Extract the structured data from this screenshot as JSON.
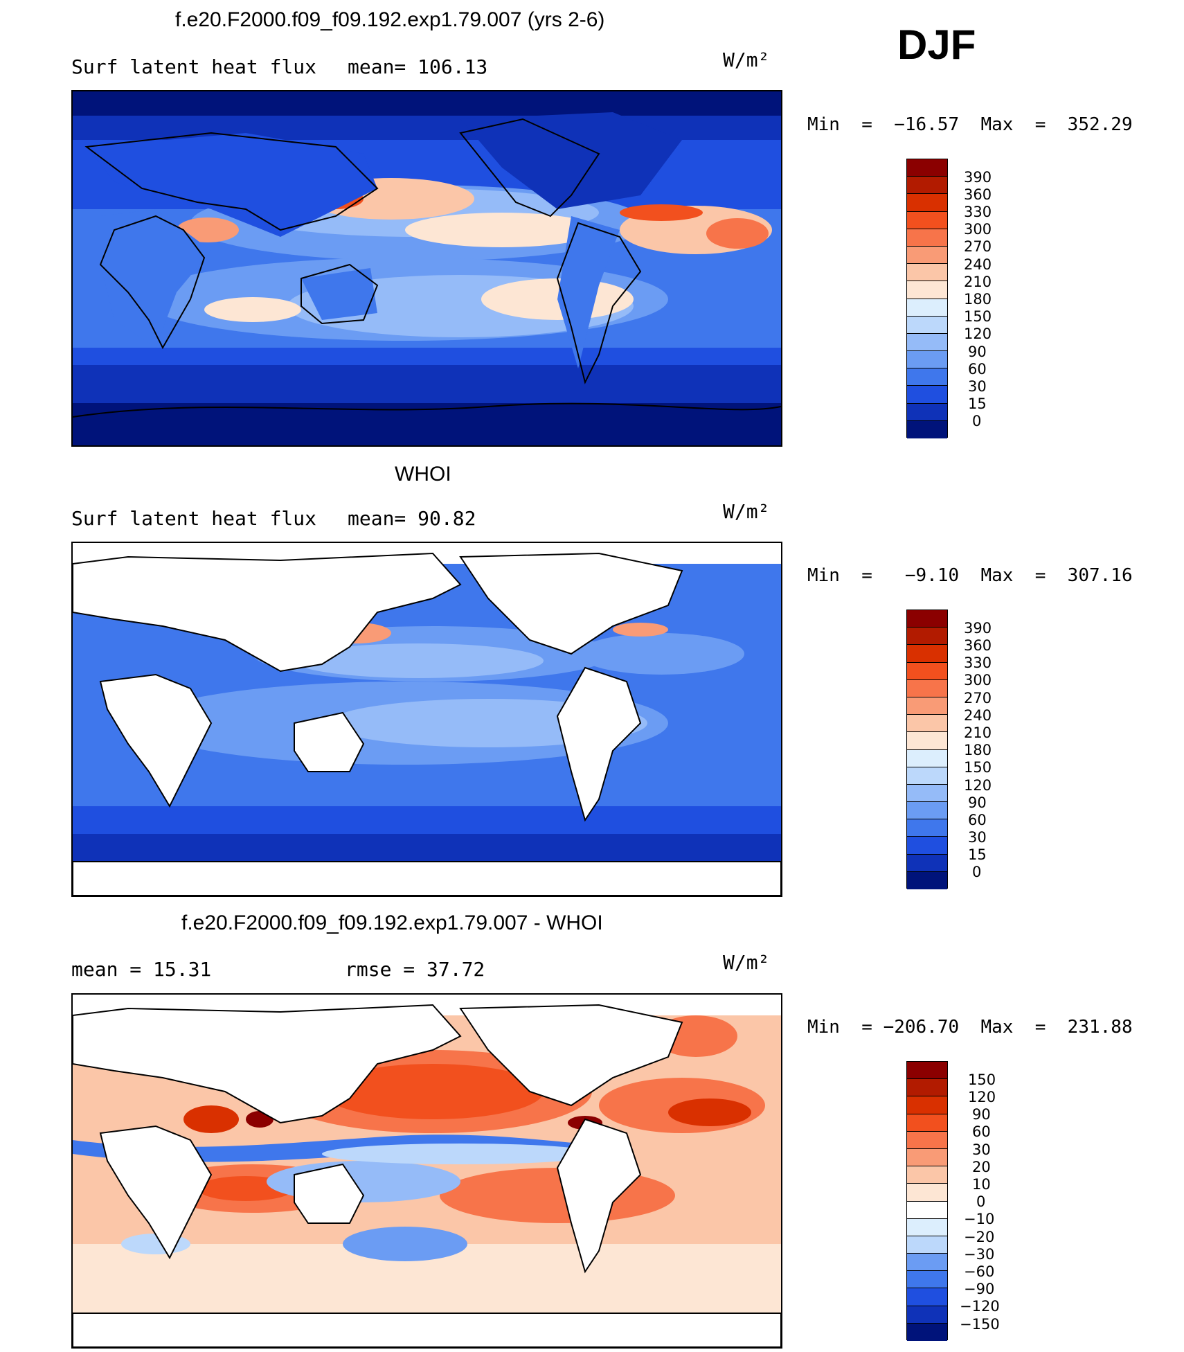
{
  "season": "DJF",
  "units": "W/m²",
  "panels": [
    {
      "title": "f.e20.F2000.f09_f09.192.exp1.79.007 (yrs 2-6)",
      "left_label": "Surf latent heat flux",
      "mid_label": "mean=  106.13",
      "minmax": "Min  =  −16.57  Max  =  352.29",
      "colorbar": {
        "labels": [
          "390",
          "360",
          "330",
          "300",
          "270",
          "240",
          "210",
          "180",
          "150",
          "120",
          "90",
          "60",
          "30",
          "15",
          "0"
        ],
        "colors": [
          "#8b0000",
          "#b21b00",
          "#d93000",
          "#f2501e",
          "#f7744a",
          "#f99b76",
          "#fbc6a8",
          "#fde6d4",
          "#dceefd",
          "#bcd8fb",
          "#95bbf8",
          "#6b9cf3",
          "#3f77ec",
          "#1f4fe0",
          "#0f32b8",
          "#00137a"
        ]
      }
    },
    {
      "title": "WHOI",
      "left_label": "Surf latent heat flux",
      "mid_label": "mean=   90.82",
      "minmax": "Min  =   −9.10  Max  =  307.16",
      "colorbar": {
        "labels": [
          "390",
          "360",
          "330",
          "300",
          "270",
          "240",
          "210",
          "180",
          "150",
          "120",
          "90",
          "60",
          "30",
          "15",
          "0"
        ],
        "colors": [
          "#8b0000",
          "#b21b00",
          "#d93000",
          "#f2501e",
          "#f7744a",
          "#f99b76",
          "#fbc6a8",
          "#fde6d4",
          "#dceefd",
          "#bcd8fb",
          "#95bbf8",
          "#6b9cf3",
          "#3f77ec",
          "#1f4fe0",
          "#0f32b8",
          "#00137a"
        ]
      }
    },
    {
      "title": "f.e20.F2000.f09_f09.192.exp1.79.007 - WHOI",
      "left_label": "mean  =    15.31",
      "mid_label": "rmse  =    37.72",
      "minmax": "Min  = −206.70  Max  =  231.88",
      "colorbar": {
        "labels": [
          "150",
          "120",
          "90",
          "60",
          "30",
          "20",
          "10",
          "0",
          "−10",
          "−20",
          "−30",
          "−60",
          "−90",
          "−120",
          "−150"
        ],
        "colors": [
          "#8b0000",
          "#b21b00",
          "#d93000",
          "#f2501e",
          "#f7744a",
          "#f99b76",
          "#fbc6a8",
          "#fde6d4",
          "#ffffff",
          "#dceefd",
          "#bcd8fb",
          "#6b9cf3",
          "#3f77ec",
          "#1f4fe0",
          "#0f32b8",
          "#00137a"
        ]
      }
    }
  ]
}
